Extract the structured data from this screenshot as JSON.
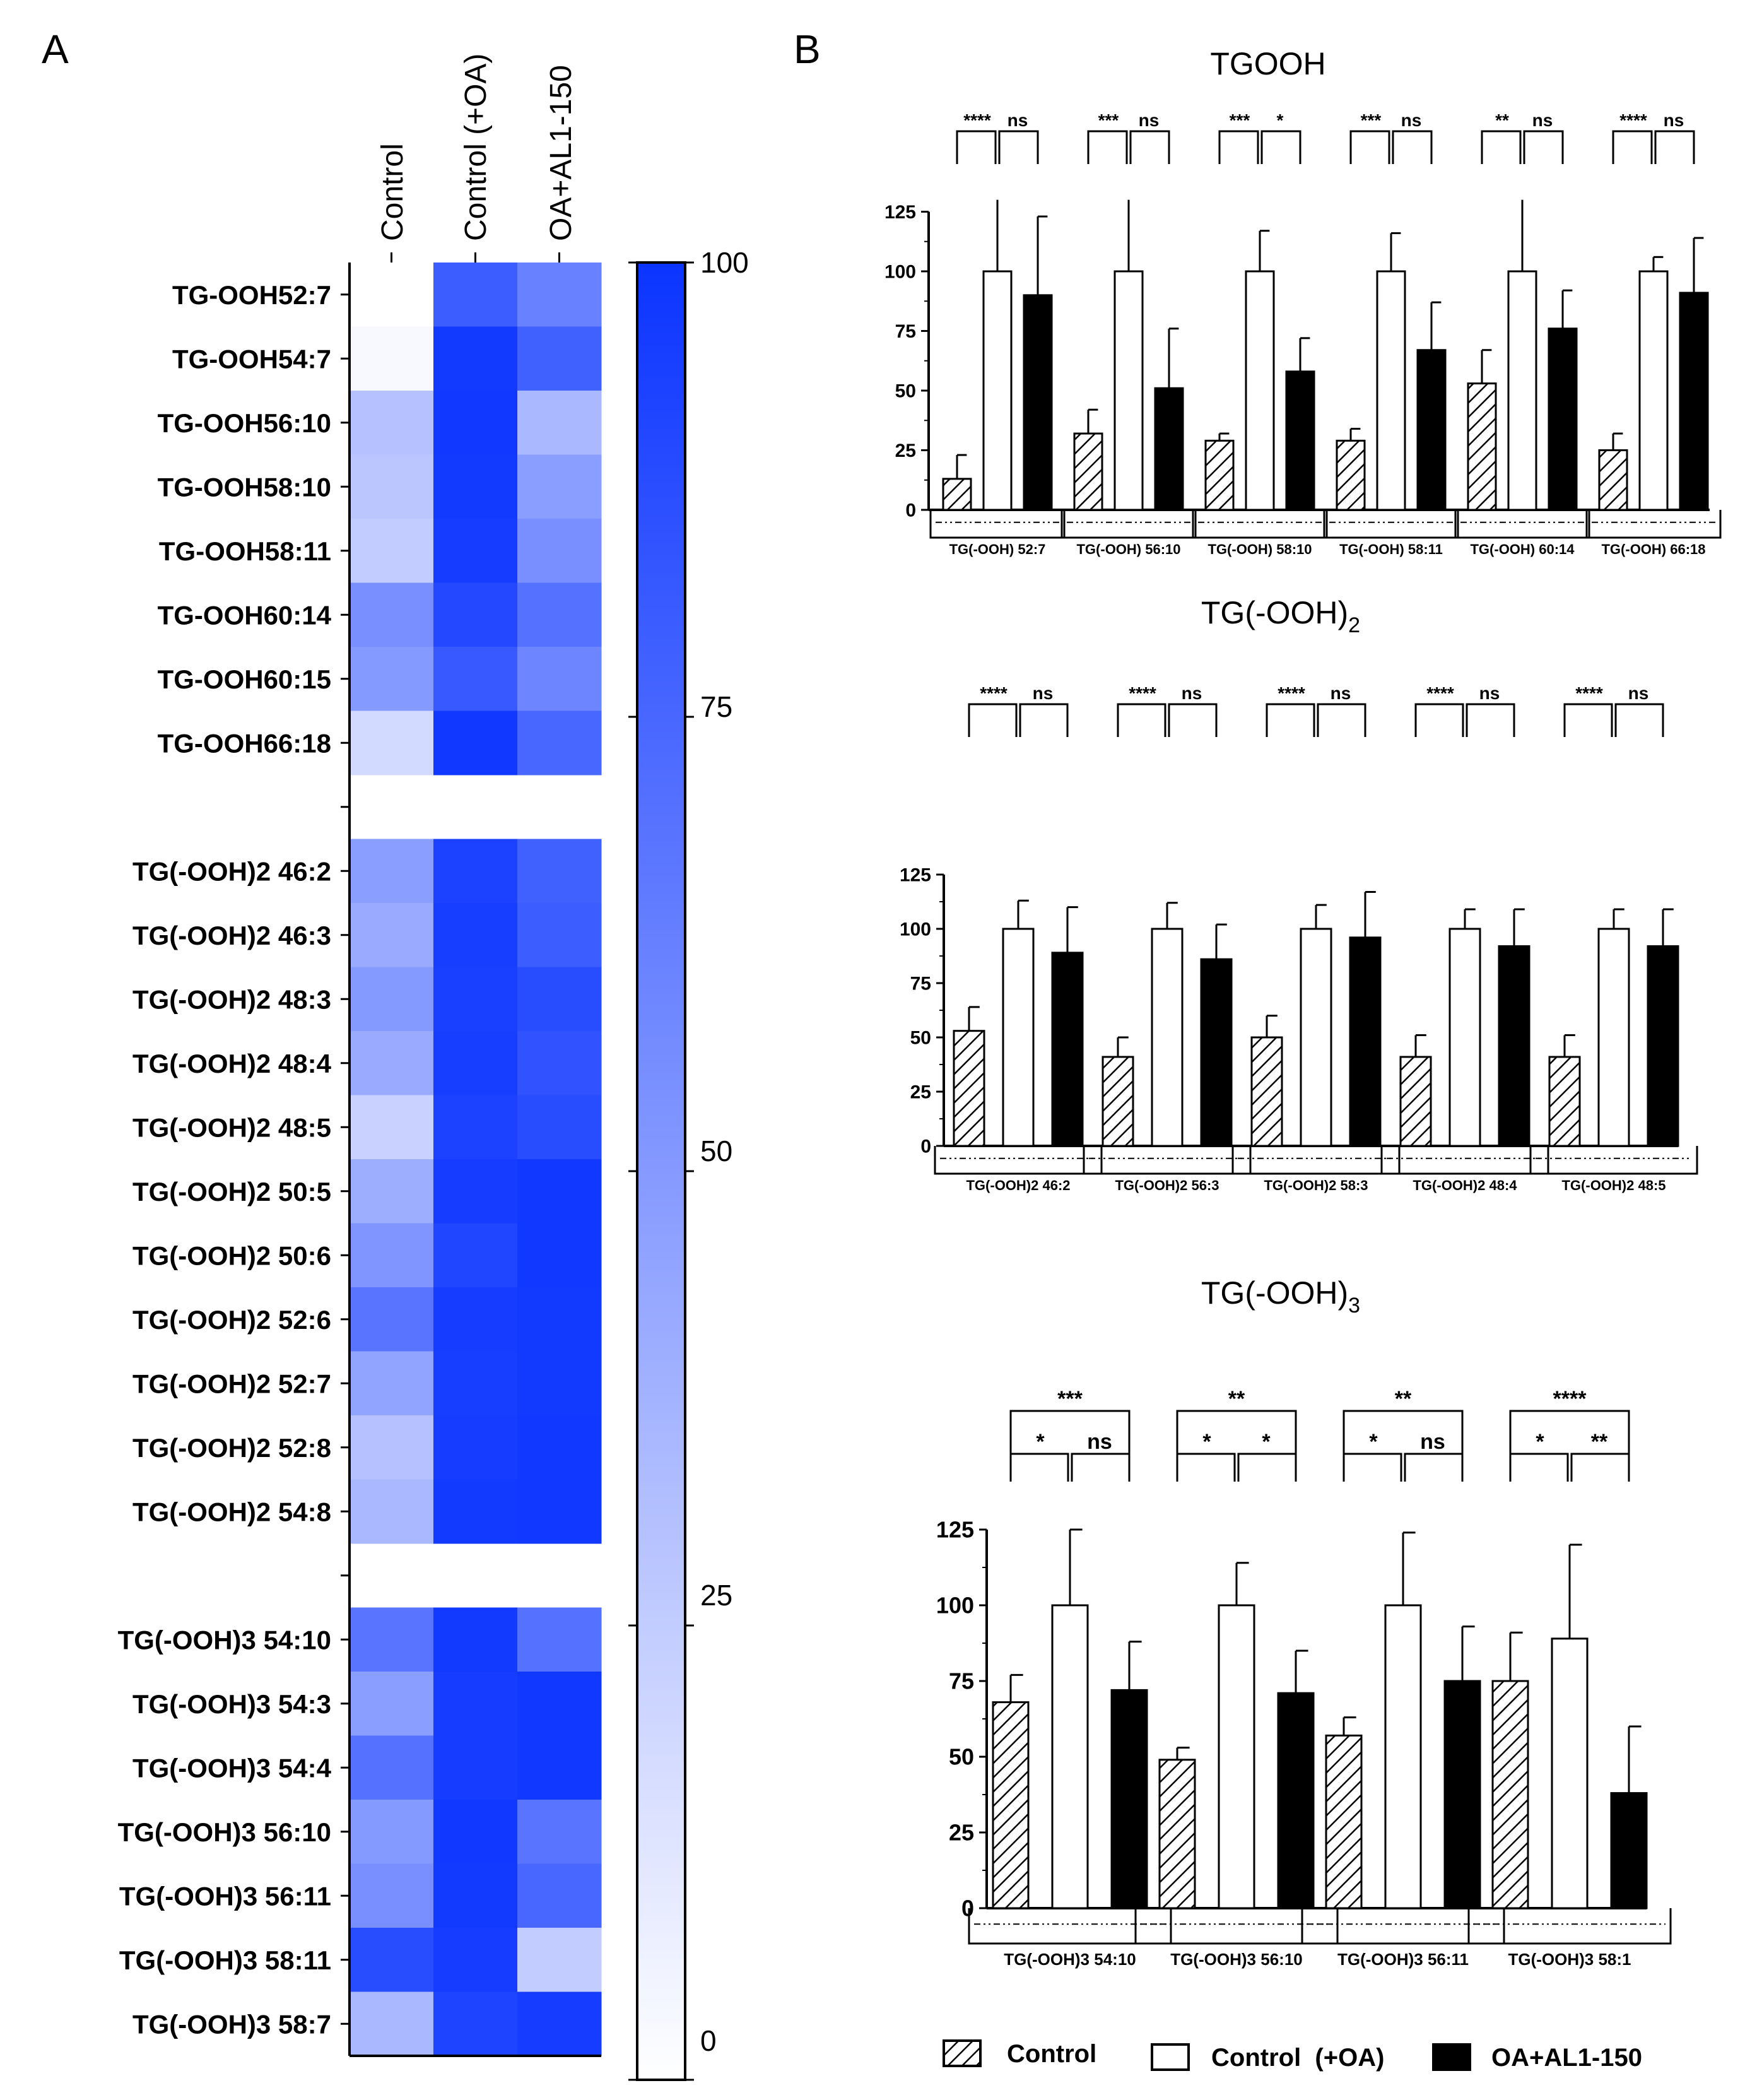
{
  "figure": {
    "panel_a_label": "A",
    "panel_b_label": "B",
    "colors": {
      "max": "#0b34ff",
      "min": "#ffffff",
      "bar_oa_al": "#000000"
    }
  },
  "heatmap": {
    "columns": [
      "Control",
      "Control (+OA)",
      "OA+AL1-150"
    ],
    "colorbar_ticks": [
      "100",
      "75",
      "50",
      "25",
      "0"
    ]
  },
  "legend": {
    "items": [
      {
        "label": "Control",
        "pattern": "hatched"
      },
      {
        "label": "Control  (+OA)",
        "pattern": "white"
      },
      {
        "label": "OA+AL1-150",
        "pattern": "black"
      }
    ]
  },
  "chart_data": [
    {
      "type": "heatmap",
      "title": "",
      "columns": [
        "Control",
        "Control (+OA)",
        "OA+AL1-150"
      ],
      "colorbar_range": [
        0,
        100
      ],
      "blocks": [
        {
          "rows": [
            "TG-OOH52:7",
            "TG-OOH54:7",
            "TG-OOH56:10",
            "TG-OOH58:10",
            "TG-OOH58:11",
            "TG-OOH60:14",
            "TG-OOH60:15",
            "TG-OOH66:18"
          ],
          "values": [
            [
              0,
              80,
              62
            ],
            [
              3,
              97,
              78
            ],
            [
              30,
              98,
              35
            ],
            [
              28,
              97,
              48
            ],
            [
              25,
              96,
              55
            ],
            [
              55,
              90,
              70
            ],
            [
              50,
              82,
              60
            ],
            [
              18,
              98,
              75
            ]
          ]
        },
        {
          "rows": [
            "TG(-OOH)2 46:2",
            "TG(-OOH)2 46:3",
            "TG(-OOH)2 48:3",
            "TG(-OOH)2 48:4",
            "TG(-OOH)2 48:5",
            "TG(-OOH)2 50:5",
            "TG(-OOH)2 50:6",
            "TG(-OOH)2 52:6",
            "TG(-OOH)2 52:7",
            "TG(-OOH)2 52:8",
            "TG(-OOH)2 54:8"
          ],
          "values": [
            [
              48,
              93,
              78
            ],
            [
              42,
              95,
              80
            ],
            [
              50,
              94,
              88
            ],
            [
              42,
              95,
              85
            ],
            [
              22,
              93,
              88
            ],
            [
              40,
              96,
              98
            ],
            [
              52,
              91,
              98
            ],
            [
              68,
              96,
              97
            ],
            [
              45,
              95,
              97
            ],
            [
              30,
              96,
              98
            ],
            [
              35,
              97,
              98
            ]
          ]
        },
        {
          "rows": [
            "TG(-OOH)3 54:10",
            "TG(-OOH)3 54:3",
            "TG(-OOH)3 54:4",
            "TG(-OOH)3 56:10",
            "TG(-OOH)3 56:11",
            "TG(-OOH)3 58:11",
            "TG(-OOH)3 58:7"
          ],
          "values": [
            [
              68,
              97,
              70
            ],
            [
              48,
              96,
              98
            ],
            [
              70,
              96,
              98
            ],
            [
              50,
              98,
              68
            ],
            [
              55,
              97,
              75
            ],
            [
              88,
              96,
              25
            ],
            [
              35,
              92,
              96
            ]
          ]
        }
      ]
    },
    {
      "type": "bar",
      "title": "TGOOH",
      "ylim": [
        0,
        125
      ],
      "yticks": [
        0,
        25,
        50,
        75,
        100,
        125
      ],
      "categories": [
        "TG(-OOH) 52:7",
        "TG(-OOH) 56:10",
        "TG(-OOH) 58:10",
        "TG(-OOH) 58:11",
        "TG(-OOH) 60:14",
        "TG(-OOH) 66:18"
      ],
      "series": [
        {
          "name": "Control",
          "values": [
            13,
            32,
            29,
            29,
            53,
            25
          ],
          "errors": [
            10,
            10,
            3,
            5,
            14,
            7
          ]
        },
        {
          "name": "Control (+OA)",
          "values": [
            100,
            100,
            100,
            100,
            100,
            100
          ],
          "errors": [
            30,
            30,
            17,
            16,
            30,
            6
          ]
        },
        {
          "name": "OA+AL1-150",
          "values": [
            90,
            51,
            58,
            67,
            76,
            91
          ],
          "errors": [
            33,
            25,
            14,
            20,
            16,
            23
          ]
        }
      ],
      "significance": [
        [
          "****",
          "ns"
        ],
        [
          "***",
          "ns"
        ],
        [
          "***",
          "*"
        ],
        [
          "***",
          "ns"
        ],
        [
          "**",
          "ns"
        ],
        [
          "****",
          "ns"
        ]
      ]
    },
    {
      "type": "bar",
      "title": "TG(-OOH)",
      "title_subscript": "2",
      "ylim": [
        0,
        125
      ],
      "yticks": [
        0,
        25,
        50,
        75,
        100,
        125
      ],
      "categories": [
        "TG(-OOH)2 46:2",
        "TG(-OOH)2 56:3",
        "TG(-OOH)2 58:3",
        "TG(-OOH)2 48:4",
        "TG(-OOH)2 48:5"
      ],
      "series": [
        {
          "name": "Control",
          "values": [
            53,
            41,
            50,
            41,
            41
          ],
          "errors": [
            11,
            9,
            10,
            10,
            10
          ]
        },
        {
          "name": "Control (+OA)",
          "values": [
            100,
            100,
            100,
            100,
            100
          ],
          "errors": [
            13,
            12,
            11,
            9,
            9
          ]
        },
        {
          "name": "OA+AL1-150",
          "values": [
            89,
            86,
            96,
            92,
            92
          ],
          "errors": [
            21,
            16,
            21,
            17,
            17
          ]
        }
      ],
      "significance": [
        [
          "****",
          "ns"
        ],
        [
          "****",
          "ns"
        ],
        [
          "****",
          "ns"
        ],
        [
          "****",
          "ns"
        ],
        [
          "****",
          "ns"
        ]
      ]
    },
    {
      "type": "bar",
      "title": "TG(-OOH)",
      "title_subscript": "3",
      "ylim": [
        0,
        125
      ],
      "yticks": [
        0,
        25,
        50,
        75,
        100,
        125
      ],
      "categories": [
        "TG(-OOH)3 54:10",
        "TG(-OOH)3 56:10",
        "TG(-OOH)3 56:11",
        "TG(-OOH)3 58:1"
      ],
      "series": [
        {
          "name": "Control",
          "values": [
            68,
            49,
            57,
            75
          ],
          "errors": [
            9,
            4,
            6,
            16
          ]
        },
        {
          "name": "Control (+OA)",
          "values": [
            100,
            100,
            100,
            89
          ],
          "errors": [
            25,
            14,
            24,
            31
          ]
        },
        {
          "name": "OA+AL1-150",
          "values": [
            72,
            71,
            75,
            38
          ],
          "errors": [
            16,
            14,
            18,
            22
          ]
        }
      ],
      "significance": [
        [
          "*",
          "ns",
          "***"
        ],
        [
          "*",
          "*",
          "**"
        ],
        [
          "*",
          "ns",
          "**"
        ],
        [
          "*",
          "**",
          "****"
        ]
      ]
    }
  ]
}
